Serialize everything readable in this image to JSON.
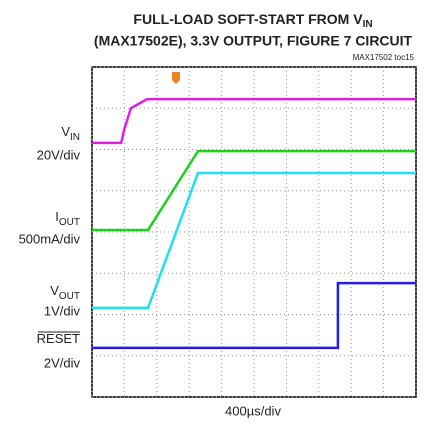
{
  "chart_data": {
    "type": "line",
    "title": [
      "FULL-LOAD SOFT-START FROM V",
      "IN",
      "(MAX17502E), 3.3V OUTPUT, FIGURE 7 CIRCUIT"
    ],
    "figure_id": "MAX17502 toc15",
    "x_label": "400µs/div",
    "xlim": [
      0,
      10
    ],
    "ylim": [
      0,
      8
    ],
    "xticks": [
      0,
      1,
      2,
      3,
      4,
      5,
      6,
      7,
      8,
      9,
      10
    ],
    "yticks": [
      0,
      1,
      2,
      3,
      4,
      5,
      6,
      7,
      8
    ],
    "grid": true,
    "series": [
      {
        "label": {
          "main": "V",
          "sub": "IN"
        },
        "scale": "20V/div",
        "color": "#e020e0",
        "x": [
          0,
          0.9,
          1.0,
          1.2,
          1.7,
          10
        ],
        "values": [
          6.16,
          6.16,
          6.5,
          7.0,
          7.22,
          7.22
        ]
      },
      {
        "label": {
          "main": "I",
          "sub": "OUT"
        },
        "scale": "500mA/div",
        "color": "#20d020",
        "x": [
          0,
          1.73,
          3.27,
          10
        ],
        "values": [
          4.05,
          4.05,
          5.96,
          5.96
        ]
      },
      {
        "label": {
          "main": "V",
          "sub": "OUT"
        },
        "scale": "1V/div",
        "color": "#20e0f0",
        "x": [
          0,
          1.73,
          3.27,
          10
        ],
        "values": [
          2.16,
          2.16,
          5.43,
          5.43
        ]
      },
      {
        "label": {
          "main": "RESET"
        },
        "scale": "2V/div",
        "color": "#2020e0",
        "x": [
          0,
          7.59,
          7.59,
          10
        ],
        "values": [
          1.19,
          1.19,
          2.76,
          2.76
        ]
      }
    ]
  }
}
